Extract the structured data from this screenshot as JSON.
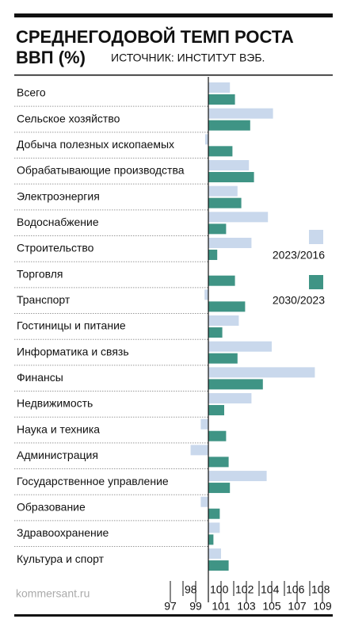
{
  "chart_data": {
    "type": "bar",
    "orientation": "horizontal",
    "title": [
      "СРЕДНЕГОДОВОЙ ТЕМП РОСТА",
      "ВВП (%)"
    ],
    "source": "ИСТОЧНИК: ИНСТИТУТ ВЭБ.",
    "footer": "kommersant.ru",
    "categories": [
      "Всего",
      "Сельское хозяйство",
      "Добыча полезных ископаемых",
      "Обрабатывающие производства",
      "Электроэнергия",
      "Водоснабжение",
      "Строительство",
      "Торговля",
      "Транспорт",
      "Гостиницы и питание",
      "Информатика и связь",
      "Финансы",
      "Недвижимость",
      "Наука и техника",
      "Администрация",
      "Государственное управление",
      "Образование",
      "Здравоохранение",
      "Культура и спорт"
    ],
    "series": [
      {
        "name": "2023/2016",
        "color": "#c9d8ec",
        "values": [
          101.7,
          105.1,
          99.75,
          103.2,
          102.3,
          104.7,
          103.4,
          100,
          99.7,
          102.4,
          105,
          108.4,
          103.4,
          99.4,
          98.6,
          104.6,
          99.4,
          100.9,
          101
        ]
      },
      {
        "name": "2030/2023",
        "color": "#3f9485",
        "values": [
          102.1,
          103.3,
          101.9,
          103.6,
          102.6,
          101.4,
          100.7,
          102.1,
          102.9,
          101.1,
          102.3,
          104.3,
          101.25,
          101.4,
          101.6,
          101.7,
          100.9,
          100.4,
          101.6
        ]
      }
    ],
    "xlim": [
      97,
      109
    ],
    "xticks": [
      97,
      98,
      99,
      100,
      101,
      102,
      103,
      104,
      105,
      106,
      107,
      108,
      109
    ],
    "baseline": 100
  }
}
